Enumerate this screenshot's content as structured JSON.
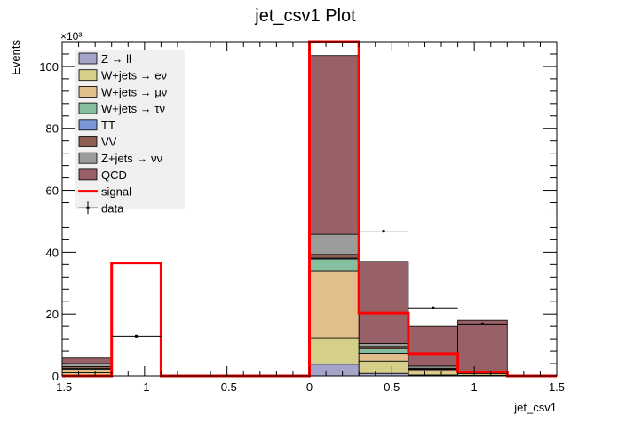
{
  "chart_data": {
    "type": "bar",
    "stacked": true,
    "title": "jet_csv1 Plot",
    "xlabel": "jet_csv1",
    "ylabel": "Events",
    "y_multiplier_label": "×10³",
    "xlim": [
      -1.5,
      1.5
    ],
    "ylim": [
      0,
      108
    ],
    "x_ticks": [
      -1.5,
      -1,
      -0.5,
      0,
      0.5,
      1,
      1.5
    ],
    "x_tick_labels": [
      "-1.5",
      "-1",
      "-0.5",
      "0",
      "0.5",
      "1",
      "1.5"
    ],
    "y_ticks": [
      0,
      20,
      40,
      60,
      80,
      100
    ],
    "y_tick_labels": [
      "0",
      "20",
      "40",
      "60",
      "80",
      "100"
    ],
    "bin_edges": [
      -1.5,
      -1.2,
      -0.9,
      -0.6,
      -0.3,
      0.0,
      0.3,
      0.6,
      0.9,
      1.2,
      1.5
    ],
    "series": [
      {
        "name": "Z → ll",
        "color": "#a4a5c9",
        "values": [
          0.2,
          0,
          0,
          0,
          0,
          3.8,
          0.8,
          0.3,
          0.2,
          0
        ]
      },
      {
        "name": "W+jets → eν",
        "color": "#d6cf89",
        "values": [
          0.8,
          0,
          0,
          0,
          0,
          8.5,
          4.0,
          1.0,
          0.5,
          0
        ]
      },
      {
        "name": "W+jets → μν",
        "color": "#e1be8b",
        "values": [
          1.2,
          0,
          0,
          0,
          0,
          21.5,
          2.5,
          0.7,
          0.4,
          0
        ]
      },
      {
        "name": "W+jets → τν",
        "color": "#86bea0",
        "values": [
          0.2,
          0,
          0,
          0,
          0,
          4.0,
          1.5,
          0.2,
          0.1,
          0
        ]
      },
      {
        "name": "TT",
        "color": "#7b96d6",
        "values": [
          0.0,
          0,
          0,
          0,
          0,
          0.3,
          0.1,
          0.0,
          0.0,
          0
        ]
      },
      {
        "name": "VV",
        "color": "#8c6152",
        "values": [
          0.6,
          0,
          0,
          0,
          0,
          1.2,
          0.6,
          0.3,
          0.1,
          0
        ]
      },
      {
        "name": "Z+jets → νν",
        "color": "#9c9c9a",
        "values": [
          1.0,
          0,
          0,
          0,
          0,
          6.5,
          1.0,
          0.7,
          0.2,
          0
        ]
      },
      {
        "name": "QCD",
        "color": "#986168",
        "values": [
          1.8,
          0,
          0,
          0,
          0,
          57.7,
          26.5,
          12.8,
          16.5,
          0
        ]
      }
    ],
    "signal": {
      "name": "signal",
      "color": "#ff0000",
      "values": [
        0,
        36.5,
        0,
        0,
        0,
        108,
        20.3,
        7.2,
        1.3,
        0
      ]
    },
    "data": {
      "name": "data",
      "bin_centers": [
        -1.05,
        0.45,
        0.75,
        1.05
      ],
      "values": [
        12.8,
        46.8,
        22.0,
        16.8
      ]
    }
  }
}
